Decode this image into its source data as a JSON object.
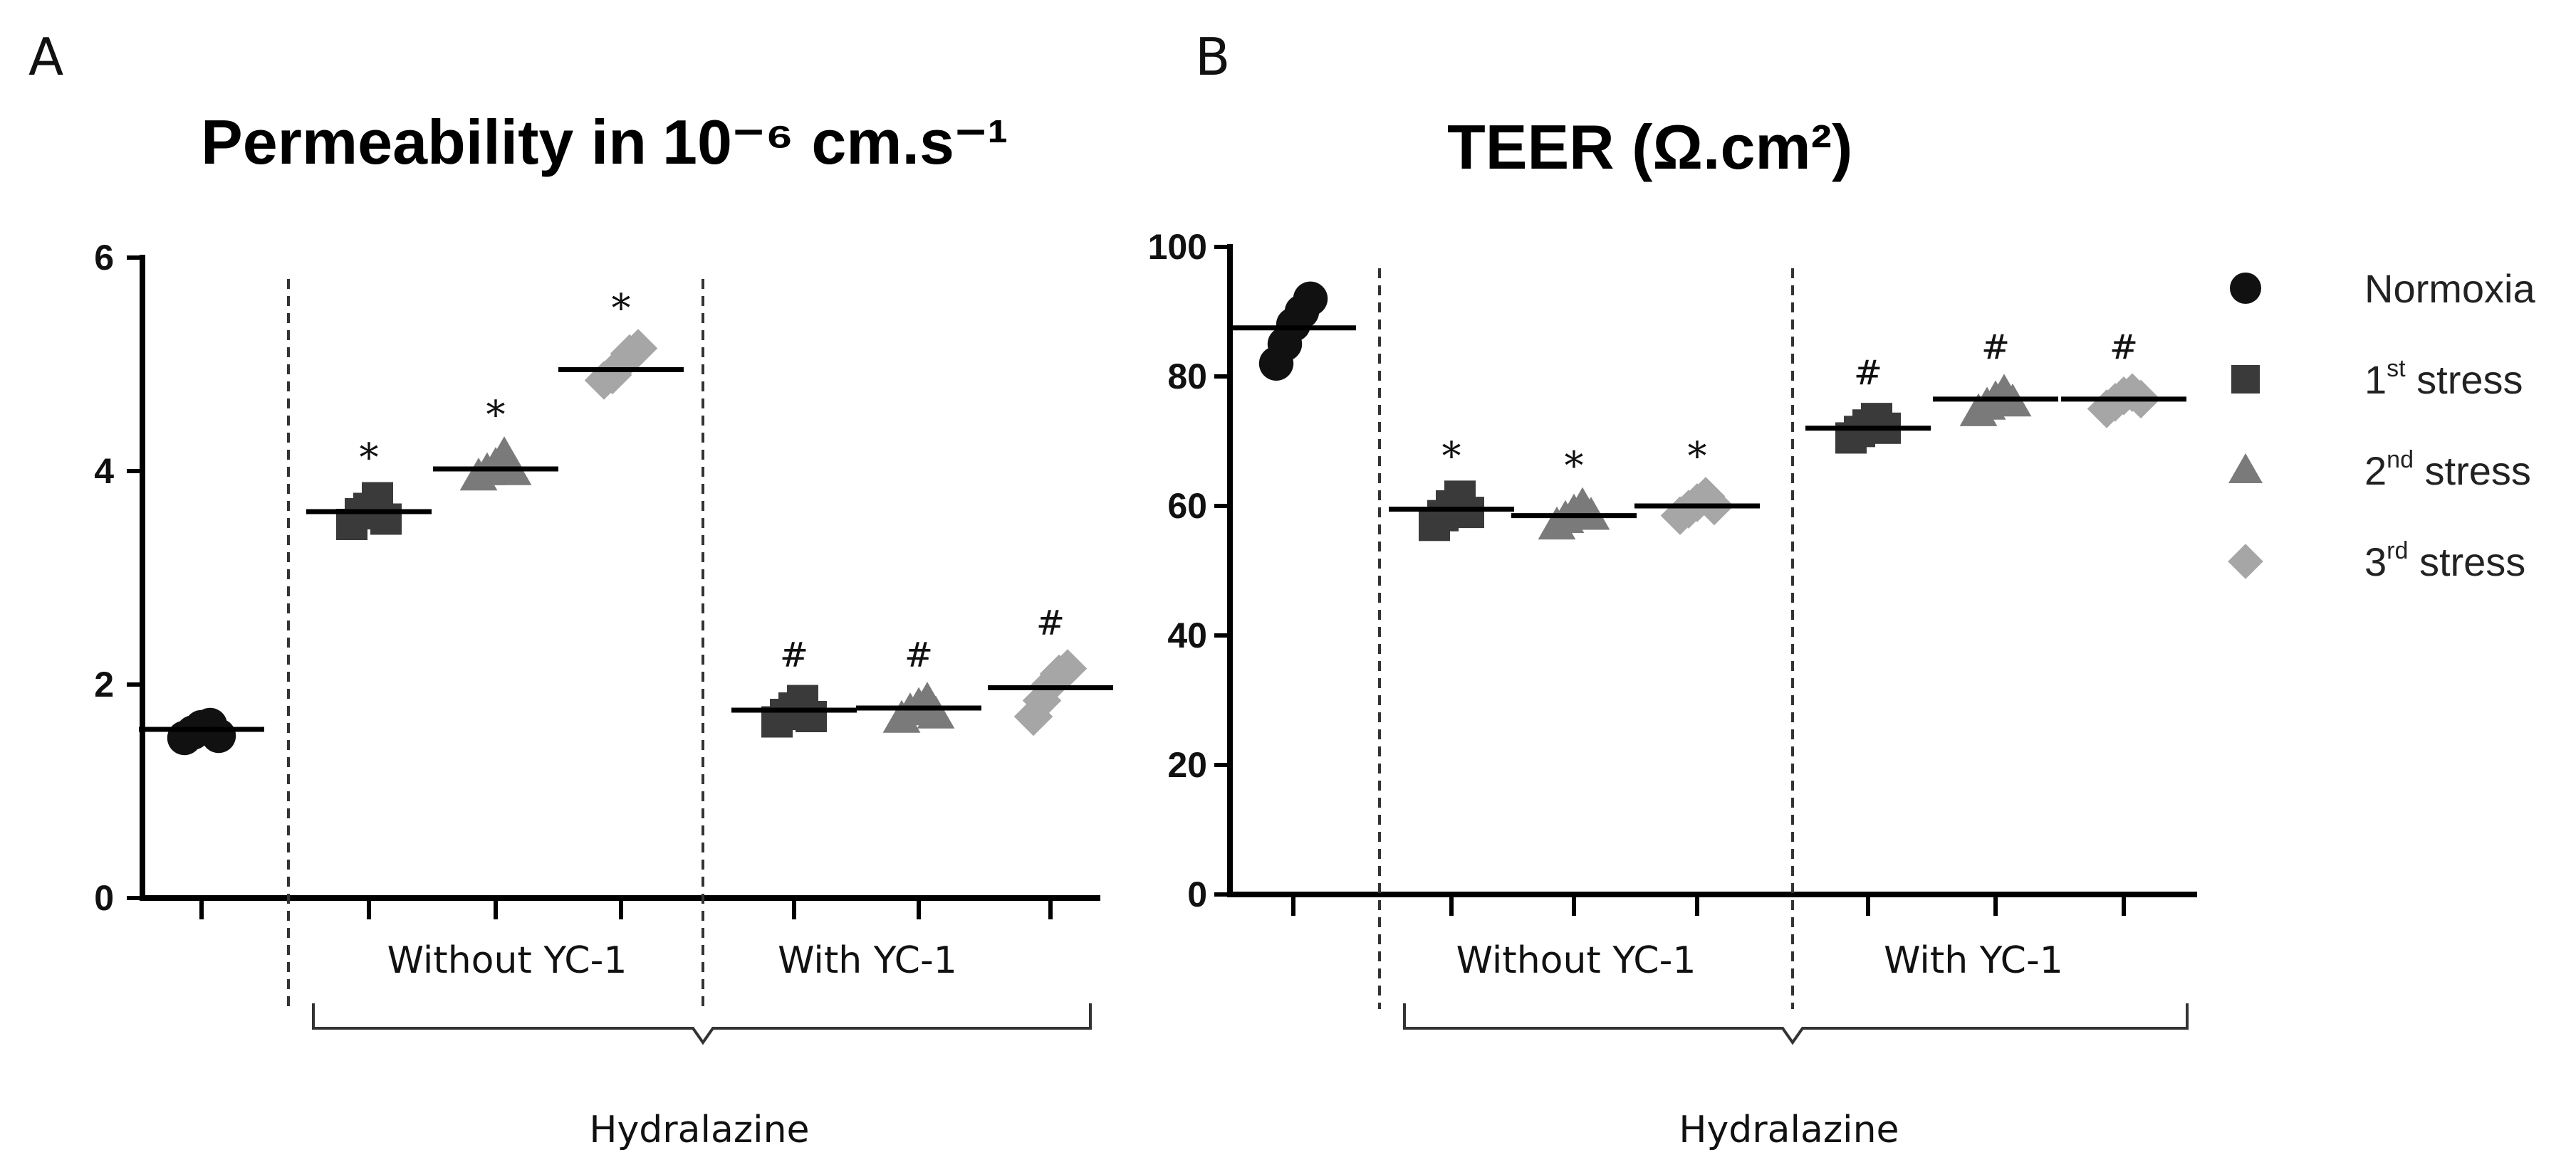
{
  "chart_data": [
    {
      "type": "scatter",
      "panel": "A",
      "title": "Permeability in",
      "title_unit": "10⁻⁶ cm.s⁻¹",
      "ylim": [
        0,
        6
      ],
      "yticks": [
        0,
        2,
        4,
        6
      ],
      "group_labels": [
        "Without YC-1",
        "With YC-1"
      ],
      "super_label": "Hydralazine",
      "groups": [
        {
          "series": "Normoxia",
          "mean": 1.58,
          "points": [
            1.5,
            1.55,
            1.6,
            1.62,
            1.52
          ],
          "marker": ""
        },
        {
          "series": "1st stress",
          "mean": 3.62,
          "points": [
            3.5,
            3.6,
            3.65,
            3.75,
            3.55
          ],
          "marker": "*"
        },
        {
          "series": "2nd stress",
          "mean": 4.02,
          "points": [
            3.95,
            4.0,
            4.05,
            4.15,
            4.0
          ],
          "marker": "*"
        },
        {
          "series": "3rd stress",
          "mean": 4.95,
          "points": [
            4.85,
            4.9,
            5.0,
            5.1,
            5.15
          ],
          "marker": "*"
        },
        {
          "series": "1st stress",
          "mean": 1.76,
          "points": [
            1.65,
            1.72,
            1.78,
            1.85,
            1.7
          ],
          "marker": "#"
        },
        {
          "series": "2nd stress",
          "mean": 1.78,
          "points": [
            1.68,
            1.75,
            1.8,
            1.85,
            1.72
          ],
          "marker": "#"
        },
        {
          "series": "3rd stress",
          "mean": 1.97,
          "points": [
            1.7,
            1.85,
            2.0,
            2.1,
            2.15
          ],
          "marker": "#"
        }
      ]
    },
    {
      "type": "scatter",
      "panel": "B",
      "title": "TEER (Ω.cm²)",
      "ylim": [
        0,
        100
      ],
      "yticks": [
        0,
        20,
        40,
        60,
        80,
        100
      ],
      "group_labels": [
        "Without YC-1",
        "With YC-1"
      ],
      "super_label": "Hydralazine",
      "groups": [
        {
          "series": "Normoxia",
          "mean": 87.5,
          "points": [
            82,
            85,
            88,
            90,
            92
          ],
          "marker": ""
        },
        {
          "series": "1st stress",
          "mean": 59.5,
          "points": [
            57,
            58.5,
            60,
            61.5,
            59
          ],
          "marker": "*"
        },
        {
          "series": "2nd stress",
          "mean": 58.5,
          "points": [
            57,
            58,
            59,
            60,
            58.5
          ],
          "marker": "*"
        },
        {
          "series": "3rd stress",
          "mean": 60,
          "points": [
            58.5,
            59.5,
            60.5,
            61.5,
            60
          ],
          "marker": "*"
        },
        {
          "series": "1st stress",
          "mean": 72,
          "points": [
            70.5,
            71.5,
            72.5,
            73.5,
            72
          ],
          "marker": "#"
        },
        {
          "series": "2nd stress",
          "mean": 76.5,
          "points": [
            74.5,
            75.5,
            76.5,
            77.5,
            76
          ],
          "marker": "#"
        },
        {
          "series": "3rd stress",
          "mean": 76.5,
          "points": [
            75,
            76,
            77,
            77.5,
            76.5
          ],
          "marker": "#"
        }
      ]
    }
  ],
  "legend": [
    {
      "name": "Normoxia",
      "base": "Normoxia",
      "sup": "",
      "tail": "",
      "shape": "circle",
      "color": "#111111"
    },
    {
      "name": "1st stress",
      "base": "1",
      "sup": "st",
      "tail": " stress",
      "shape": "square",
      "color": "#3a3a3a"
    },
    {
      "name": "2nd stress",
      "base": "2",
      "sup": "nd",
      "tail": " stress",
      "shape": "triangle",
      "color": "#7a7a7a"
    },
    {
      "name": "3rd stress",
      "base": "3",
      "sup": "rd",
      "tail": " stress",
      "shape": "diamond",
      "color": "#a6a6a6"
    }
  ]
}
